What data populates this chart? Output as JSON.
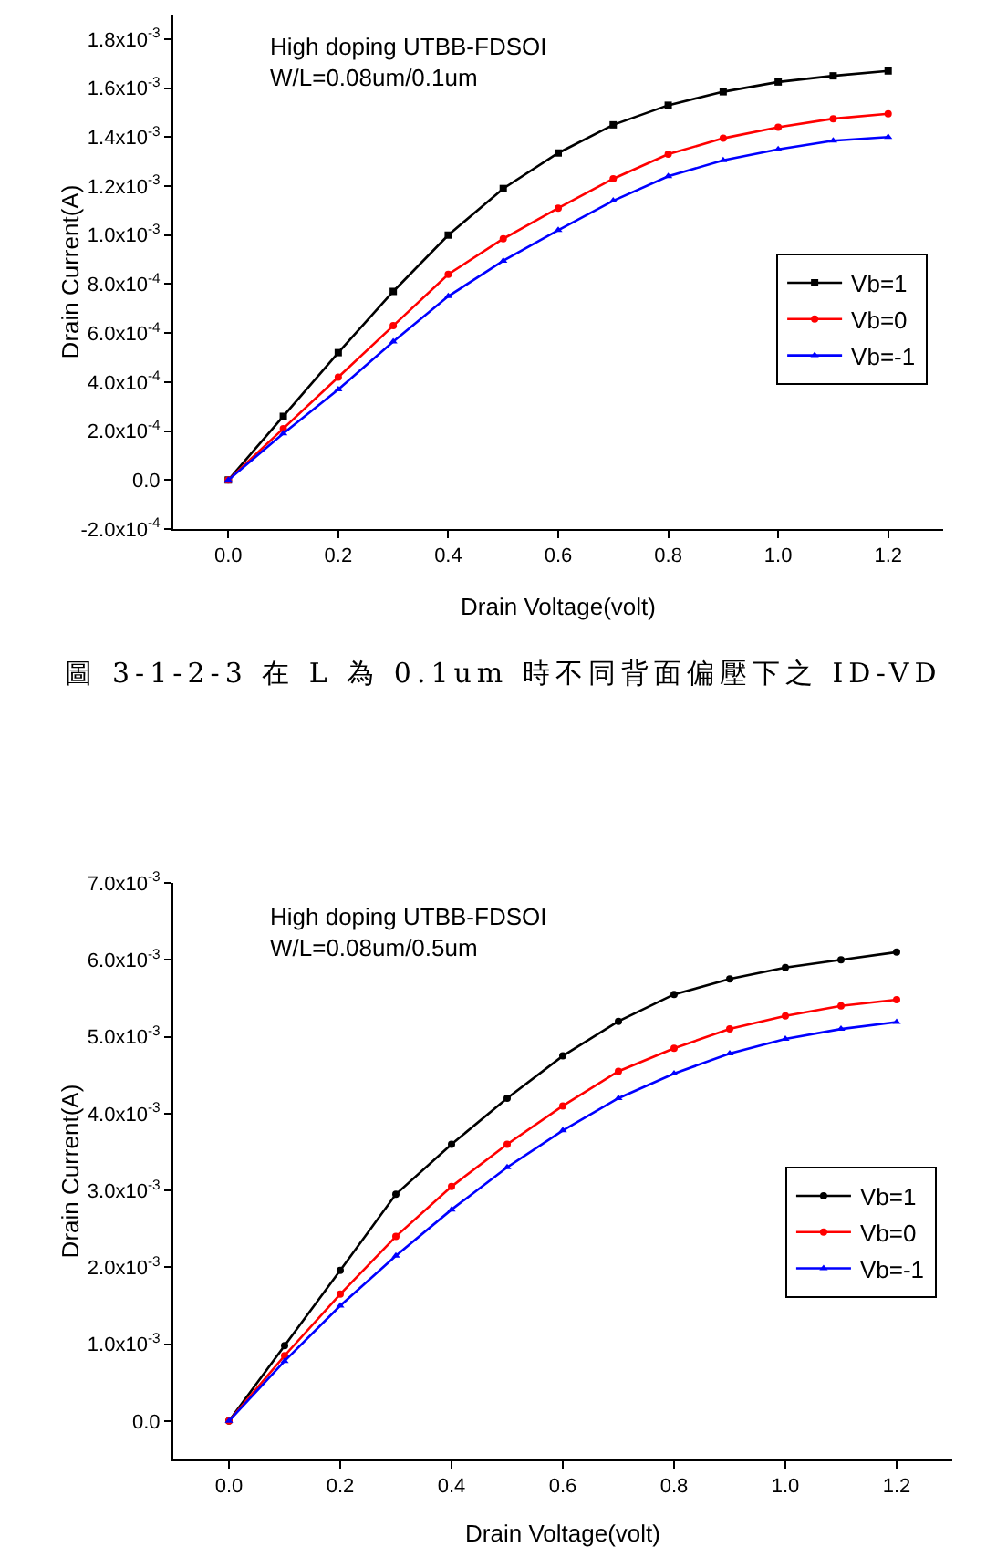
{
  "chart_data": [
    {
      "type": "line",
      "xlabel": "Drain Voltage(volt)",
      "ylabel": "Drain Current(A)",
      "annotations": [
        "High doping UTBB-FDSOI",
        "W/L=0.08um/0.1um",
        "圖 3-1-2-3 在 L 為 0.1um 時不同背面偏壓下之 ID-VD"
      ],
      "x": [
        0,
        0.1,
        0.2,
        0.3,
        0.4,
        0.5,
        0.6,
        0.7,
        0.8,
        0.9,
        1.0,
        1.1,
        1.2
      ],
      "series": [
        {
          "name": "Vb=1",
          "color": "#000000",
          "marker": "square",
          "values": [
            0,
            0.00026,
            0.00052,
            0.00077,
            0.001,
            0.00119,
            0.001335,
            0.00145,
            0.00153,
            0.001585,
            0.001625,
            0.00165,
            0.00167
          ]
        },
        {
          "name": "Vb=0",
          "color": "#ff0000",
          "marker": "circle",
          "values": [
            0,
            0.00021,
            0.00042,
            0.00063,
            0.00084,
            0.000985,
            0.00111,
            0.00123,
            0.00133,
            0.001395,
            0.00144,
            0.001475,
            0.001495
          ]
        },
        {
          "name": "Vb=-1",
          "color": "#0000ff",
          "marker": "triangle",
          "values": [
            0,
            0.00019,
            0.00037,
            0.000565,
            0.00075,
            0.000895,
            0.00102,
            0.00114,
            0.00124,
            0.001305,
            0.00135,
            0.001385,
            0.0014
          ]
        }
      ],
      "xlim": [
        -0.1,
        1.3
      ],
      "xticks": [
        {
          "value": 0,
          "label": "0.0"
        },
        {
          "value": 0.2,
          "label": "0.2"
        },
        {
          "value": 0.4,
          "label": "0.4"
        },
        {
          "value": 0.6,
          "label": "0.6"
        },
        {
          "value": 0.8,
          "label": "0.8"
        },
        {
          "value": 1,
          "label": "1.0"
        },
        {
          "value": 1.2,
          "label": "1.2"
        }
      ],
      "ylim": [
        -0.0002,
        0.0019
      ],
      "yticks": [
        {
          "value": -0.0002,
          "label": "-2.0x10$^{-4}$"
        },
        {
          "value": 0,
          "label": "0.0"
        },
        {
          "value": 0.0002,
          "label": "2.0x10$^{-4}$"
        },
        {
          "value": 0.0004,
          "label": "4.0x10$^{-4}$"
        },
        {
          "value": 0.0006,
          "label": "6.0x10$^{-4}$"
        },
        {
          "value": 0.0008,
          "label": "8.0x10$^{-4}$"
        },
        {
          "value": 0.001,
          "label": "1.0x10$^{-3}$"
        },
        {
          "value": 0.0012,
          "label": "1.2x10$^{-3}$"
        },
        {
          "value": 0.0014,
          "label": "1.4x10$^{-3}$"
        },
        {
          "value": 0.0016,
          "label": "1.6x10$^{-3}$"
        },
        {
          "value": 0.0018,
          "label": "1.8x10$^{-3}$"
        }
      ],
      "legend": "bottom right",
      "grid": false,
      "line_style": "solid"
    },
    {
      "type": "line",
      "xlabel": "Drain Voltage(volt)",
      "ylabel": "Drain Current(A)",
      "annotations": [
        "High doping UTBB-FDSOI",
        "W/L=0.08um/0.5um"
      ],
      "x": [
        0,
        0.1,
        0.2,
        0.3,
        0.4,
        0.5,
        0.6,
        0.7,
        0.8,
        0.9,
        1.0,
        1.1,
        1.2
      ],
      "series": [
        {
          "name": "Vb=1",
          "color": "#000000",
          "marker": "circle",
          "values": [
            0,
            0.00098,
            0.00196,
            0.00295,
            0.0036,
            0.0042,
            0.00475,
            0.0052,
            0.00555,
            0.00575,
            0.0059,
            0.006,
            0.0061
          ]
        },
        {
          "name": "Vb=0",
          "color": "#ff0000",
          "marker": "circle",
          "values": [
            0,
            0.00085,
            0.00165,
            0.0024,
            0.00305,
            0.0036,
            0.0041,
            0.00455,
            0.00485,
            0.0051,
            0.00527,
            0.0054,
            0.00548
          ]
        },
        {
          "name": "Vb=-1",
          "color": "#0000ff",
          "marker": "triangle",
          "values": [
            0,
            0.00078,
            0.0015,
            0.00215,
            0.00275,
            0.0033,
            0.00378,
            0.0042,
            0.00452,
            0.00478,
            0.00497,
            0.0051,
            0.00519
          ]
        }
      ],
      "xlim": [
        -0.1,
        1.3
      ],
      "xticks": [
        {
          "value": 0,
          "label": "0.0"
        },
        {
          "value": 0.2,
          "label": "0.2"
        },
        {
          "value": 0.4,
          "label": "0.4"
        },
        {
          "value": 0.6,
          "label": "0.6"
        },
        {
          "value": 0.8,
          "label": "0.8"
        },
        {
          "value": 1,
          "label": "1.0"
        },
        {
          "value": 1.2,
          "label": "1.2"
        }
      ],
      "ylim": [
        -0.0005,
        0.007
      ],
      "yticks": [
        {
          "value": 0,
          "label": "0.0"
        },
        {
          "value": 0.001,
          "label": "1.0x10$^{-3}$"
        },
        {
          "value": 0.002,
          "label": "2.0x10$^{-3}$"
        },
        {
          "value": 0.003,
          "label": "3.0x10$^{-3}$"
        },
        {
          "value": 0.004,
          "label": "4.0x10$^{-3}$"
        },
        {
          "value": 0.005,
          "label": "5.0x10$^{-3}$"
        },
        {
          "value": 0.006,
          "label": "6.0x10$^{-3}$"
        },
        {
          "value": 0.007,
          "label": "7.0x10$^{-3}$"
        }
      ],
      "legend": "bottom right",
      "grid": false,
      "line_style": "solid"
    }
  ]
}
